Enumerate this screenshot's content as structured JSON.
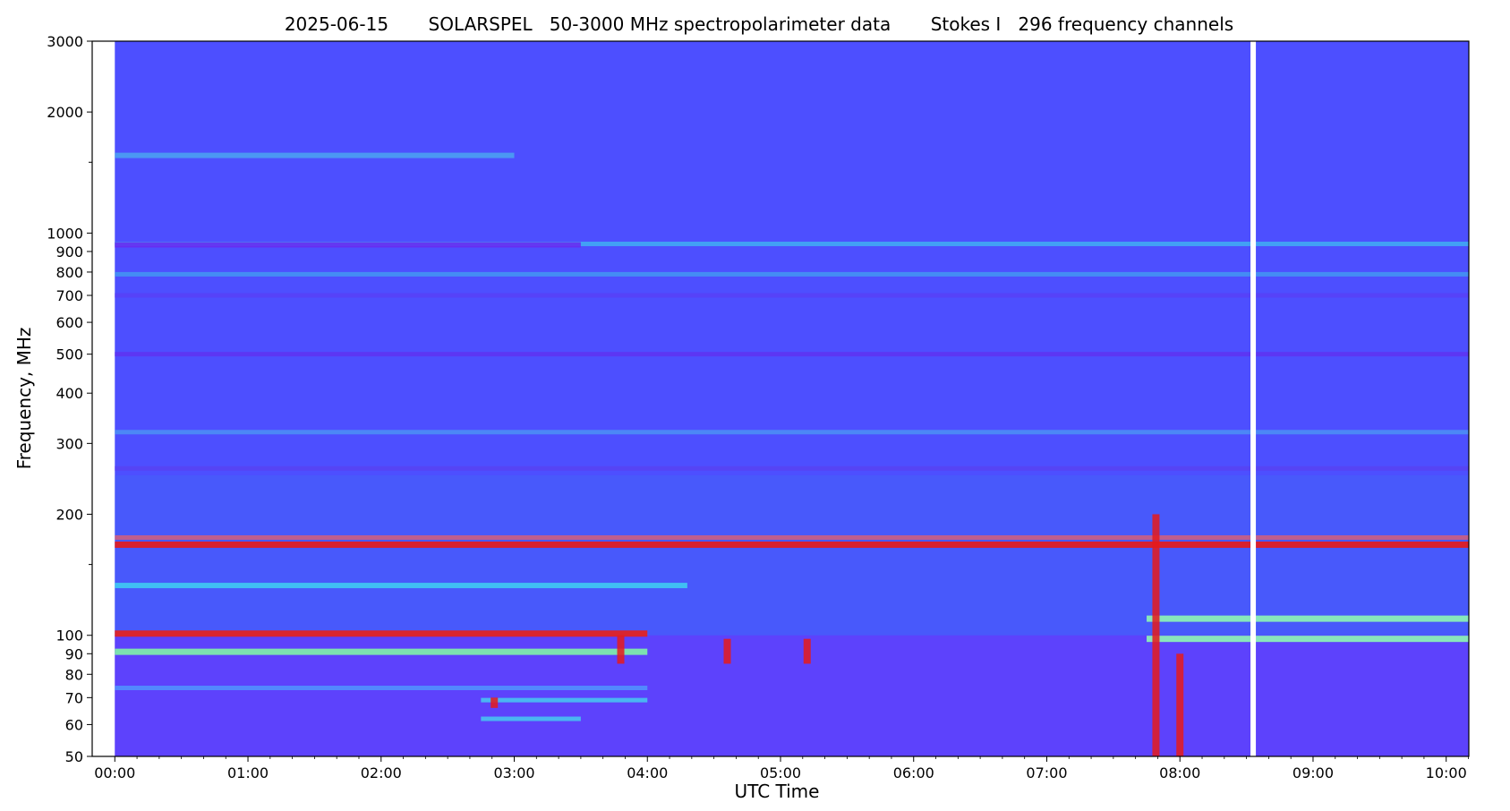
{
  "chart_data": {
    "type": "heatmap",
    "title": "2025-06-15       SOLARSPEL   50-3000 MHz spectropolarimeter data       Stokes I   296 frequency channels",
    "xlabel": "UTC Time",
    "ylabel": "Frequency, MHz",
    "x_range_hours": [
      -0.17,
      10.17
    ],
    "y_scale": "log",
    "ylim": [
      50,
      3000
    ],
    "x_ticks": [
      {
        "value": 0,
        "label": "00:00"
      },
      {
        "value": 1,
        "label": "01:00"
      },
      {
        "value": 2,
        "label": "02:00"
      },
      {
        "value": 3,
        "label": "03:00"
      },
      {
        "value": 4,
        "label": "04:00"
      },
      {
        "value": 5,
        "label": "05:00"
      },
      {
        "value": 6,
        "label": "06:00"
      },
      {
        "value": 7,
        "label": "07:00"
      },
      {
        "value": 8,
        "label": "08:00"
      },
      {
        "value": 9,
        "label": "09:00"
      },
      {
        "value": 10,
        "label": "10:00"
      }
    ],
    "y_ticks": [
      {
        "value": 50,
        "label": "50"
      },
      {
        "value": 60,
        "label": "60"
      },
      {
        "value": 70,
        "label": "70"
      },
      {
        "value": 80,
        "label": "80"
      },
      {
        "value": 90,
        "label": "90"
      },
      {
        "value": 100,
        "label": "100"
      },
      {
        "value": 200,
        "label": "200"
      },
      {
        "value": 300,
        "label": "300"
      },
      {
        "value": 400,
        "label": "400"
      },
      {
        "value": 500,
        "label": "500"
      },
      {
        "value": 600,
        "label": "600"
      },
      {
        "value": 700,
        "label": "700"
      },
      {
        "value": 800,
        "label": "800"
      },
      {
        "value": 900,
        "label": "900"
      },
      {
        "value": 1000,
        "label": "1000"
      },
      {
        "value": 2000,
        "label": "2000"
      },
      {
        "value": 3000,
        "label": "3000"
      }
    ],
    "minor_y_ticks": [
      1500,
      150
    ],
    "data_start_hours": 0.0,
    "data_end_hours": 10.17,
    "data_gap_hours": [
      8.53,
      8.57
    ],
    "background_color": "#4d4fff",
    "low_band_color": "#7a2cf5",
    "horizontal_bands": [
      {
        "freq": 1560,
        "t_start": 0.0,
        "t_end": 3.0,
        "color": "#4aa6f0",
        "strength": 0.7
      },
      {
        "freq": 940,
        "t_start": 0.0,
        "t_end": 10.17,
        "color": "#3fb7f2",
        "strength": 0.6
      },
      {
        "freq": 935,
        "t_start": 0.0,
        "t_end": 3.5,
        "color": "#6a28f0",
        "strength": 0.8
      },
      {
        "freq": 790,
        "t_start": 0.0,
        "t_end": 10.17,
        "color": "#41a0f0",
        "strength": 0.5
      },
      {
        "freq": 700,
        "t_start": 0.0,
        "t_end": 10.17,
        "color": "#5a3ef5",
        "strength": 0.5
      },
      {
        "freq": 500,
        "t_start": 0.0,
        "t_end": 10.17,
        "color": "#6030f0",
        "strength": 0.6
      },
      {
        "freq": 320,
        "t_start": 0.0,
        "t_end": 10.17,
        "color": "#4c9ef2",
        "strength": 0.4
      },
      {
        "freq": 260,
        "t_start": 0.0,
        "t_end": 10.17,
        "color": "#5a40f0",
        "strength": 0.5
      },
      {
        "freq": 168,
        "t_start": 0.0,
        "t_end": 10.17,
        "color": "#e61a1a",
        "strength": 0.9
      },
      {
        "freq": 175,
        "t_start": 0.0,
        "t_end": 10.17,
        "color": "#f06060",
        "strength": 0.4
      },
      {
        "freq": 133,
        "t_start": 0.0,
        "t_end": 4.3,
        "color": "#3fd4f0",
        "strength": 0.7
      },
      {
        "freq": 101,
        "t_start": 0.0,
        "t_end": 4.0,
        "color": "#e8201a",
        "strength": 0.9
      },
      {
        "freq": 91,
        "t_start": 0.0,
        "t_end": 4.0,
        "color": "#7ff0a8",
        "strength": 0.9
      },
      {
        "freq": 110,
        "t_start": 7.75,
        "t_end": 10.17,
        "color": "#8ef5b4",
        "strength": 0.9
      },
      {
        "freq": 98,
        "t_start": 7.75,
        "t_end": 10.17,
        "color": "#8ef5b4",
        "strength": 0.9
      },
      {
        "freq": 74,
        "t_start": 0.0,
        "t_end": 4.0,
        "color": "#4fa0ff",
        "strength": 0.5
      },
      {
        "freq": 69,
        "t_start": 2.75,
        "t_end": 4.0,
        "color": "#46d3ee",
        "strength": 0.6
      },
      {
        "freq": 62,
        "t_start": 2.75,
        "t_end": 3.5,
        "color": "#46d3ee",
        "strength": 0.6
      }
    ],
    "bursts": [
      {
        "t": 3.8,
        "freq_low": 85,
        "freq_high": 100,
        "color": "#e61a1a"
      },
      {
        "t": 4.6,
        "freq_low": 85,
        "freq_high": 98,
        "color": "#e61a1a"
      },
      {
        "t": 5.2,
        "freq_low": 85,
        "freq_high": 98,
        "color": "#e61a1a"
      },
      {
        "t": 2.85,
        "freq_low": 66,
        "freq_high": 70,
        "color": "#e61a1a"
      },
      {
        "t": 7.82,
        "freq_low": 50,
        "freq_high": 200,
        "color": "#e61a1a"
      },
      {
        "t": 8.0,
        "freq_low": 50,
        "freq_high": 90,
        "color": "#e61a1a"
      }
    ]
  }
}
